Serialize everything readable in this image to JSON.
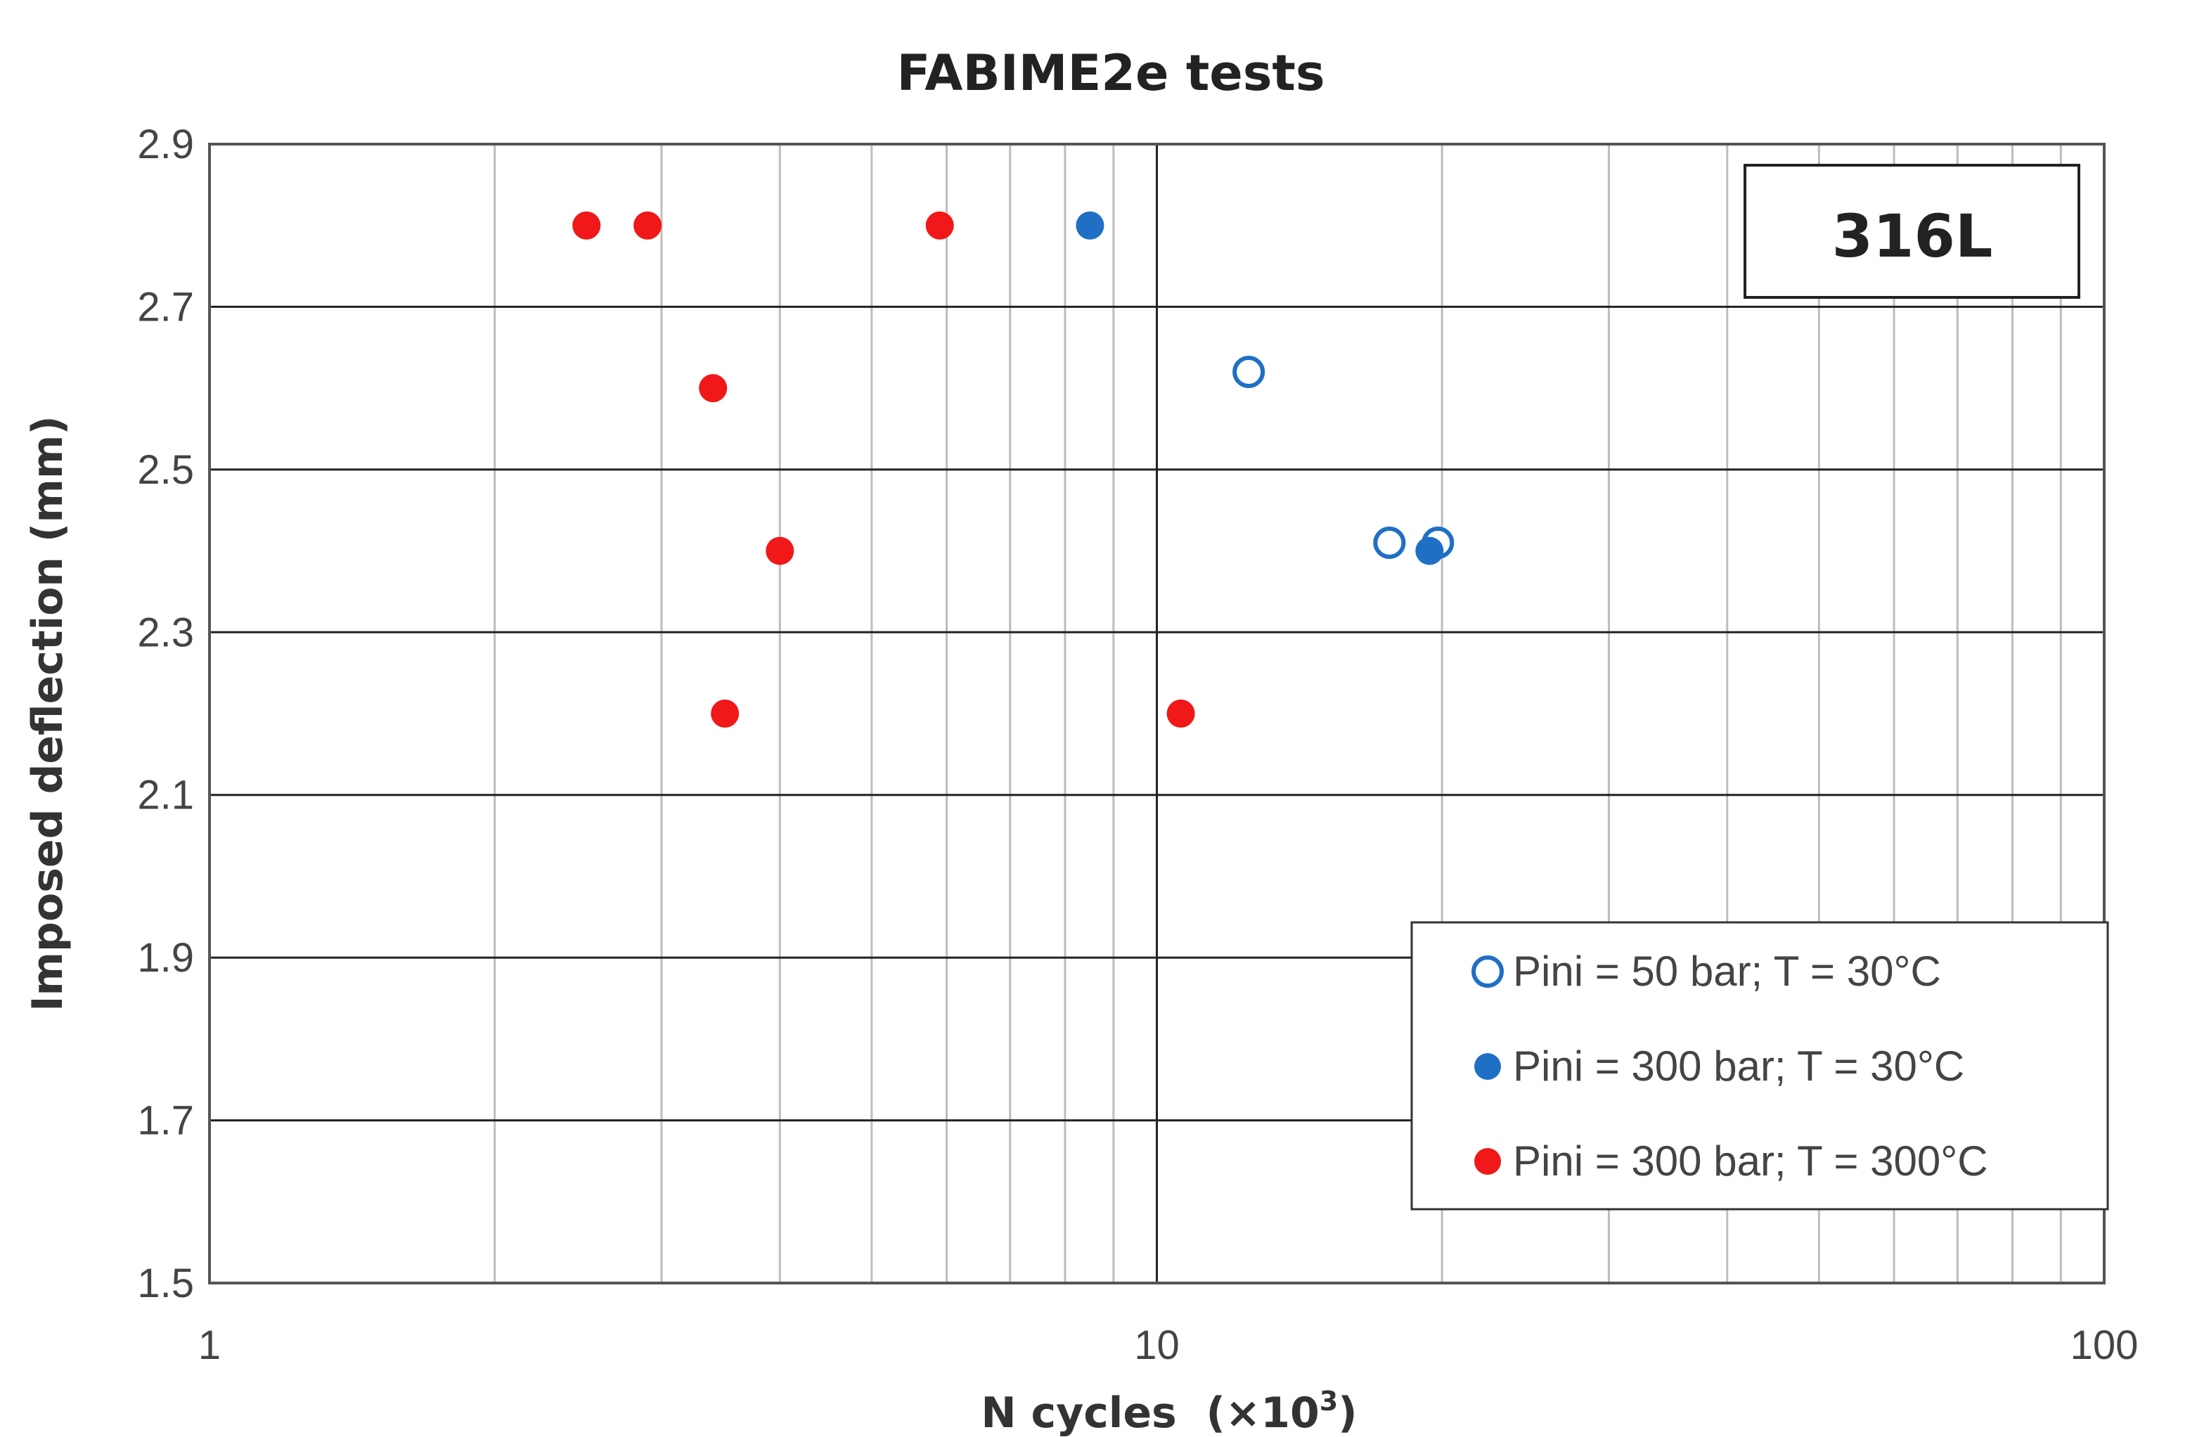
{
  "chart_data": {
    "type": "scatter",
    "title": "FABIME2e tests",
    "xlabel": "N cycles  (×10",
    "xlabel_superscript": "3",
    "xlabel_suffix": ")",
    "ylabel": "Imposed deflection (mm)",
    "xscale": "log",
    "xlim": [
      1,
      100
    ],
    "ylim": [
      1.5,
      2.9
    ],
    "xticks": [
      1,
      10,
      100
    ],
    "xtick_labels": [
      "1",
      "10",
      "100"
    ],
    "yticks": [
      1.5,
      1.7,
      1.9,
      2.1,
      2.3,
      2.5,
      2.7,
      2.9
    ],
    "ytick_labels": [
      "1.5",
      "1.7",
      "1.9",
      "2.1",
      "2.3",
      "2.5",
      "2.7",
      "2.9"
    ],
    "grid": true,
    "legend_position": "bottom-right",
    "tag": "316L",
    "tag_position": "top-right",
    "series": [
      {
        "name": "Pini = 50 bar; T = 30°C",
        "marker": "open-circle",
        "color": "#1F6FC5",
        "points": [
          [
            12.5,
            2.62
          ],
          [
            17.6,
            2.41
          ],
          [
            19.8,
            2.41
          ]
        ]
      },
      {
        "name": "Pini = 300 bar; T = 30°C",
        "marker": "filled-circle",
        "color": "#1F6FC5",
        "points": [
          [
            8.5,
            2.8
          ],
          [
            19.4,
            2.4
          ]
        ]
      },
      {
        "name": "Pini = 300 bar; T = 300°C",
        "marker": "filled-circle",
        "color": "#F01818",
        "points": [
          [
            2.5,
            2.8
          ],
          [
            2.9,
            2.8
          ],
          [
            5.9,
            2.8
          ],
          [
            3.4,
            2.6
          ],
          [
            4.0,
            2.4
          ],
          [
            3.5,
            2.2
          ],
          [
            10.6,
            2.2
          ]
        ]
      }
    ]
  }
}
